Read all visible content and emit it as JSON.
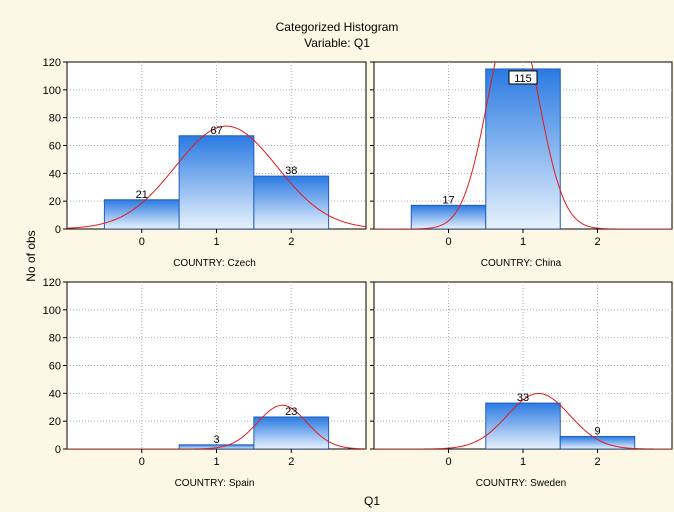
{
  "chart_data": {
    "type": "bar",
    "title": "Categorized Histogram",
    "subtitle": "Variable: Q1",
    "xlabel": "Q1",
    "ylabel": "No of obs",
    "ylim": [
      0,
      120
    ],
    "yticks": [
      0,
      20,
      40,
      60,
      80,
      100,
      120
    ],
    "xlim": [
      -1,
      3
    ],
    "xticks": [
      0,
      1,
      2
    ],
    "grid": true,
    "bar_color": "#2a7ae2",
    "curve_color": "#e31a1c",
    "background_color": "#fdf8e6",
    "panels": [
      {
        "label": "COUNTRY: Czech",
        "bars": [
          {
            "x": 0,
            "value": 21,
            "label": "21"
          },
          {
            "x": 1,
            "value": 67,
            "label": "67"
          },
          {
            "x": 2,
            "value": 38,
            "label": "38"
          }
        ],
        "normal_fit": {
          "mean": 1.13,
          "sd": 0.68,
          "n": 126
        }
      },
      {
        "label": "COUNTRY: China",
        "bars": [
          {
            "x": 0,
            "value": 17,
            "label": "17"
          },
          {
            "x": 1,
            "value": 115,
            "label": "115",
            "boxed": true
          }
        ],
        "normal_fit": {
          "mean": 0.87,
          "sd": 0.34,
          "n": 132
        }
      },
      {
        "label": "COUNTRY: Spain",
        "bars": [
          {
            "x": 1,
            "value": 3,
            "label": "3"
          },
          {
            "x": 2,
            "value": 23,
            "label": "23"
          }
        ],
        "normal_fit": {
          "mean": 1.88,
          "sd": 0.33,
          "n": 26
        }
      },
      {
        "label": "COUNTRY: Sweden",
        "bars": [
          {
            "x": 1,
            "value": 33,
            "label": "33"
          },
          {
            "x": 2,
            "value": 9,
            "label": "9"
          }
        ],
        "normal_fit": {
          "mean": 1.21,
          "sd": 0.42,
          "n": 42
        }
      }
    ]
  }
}
